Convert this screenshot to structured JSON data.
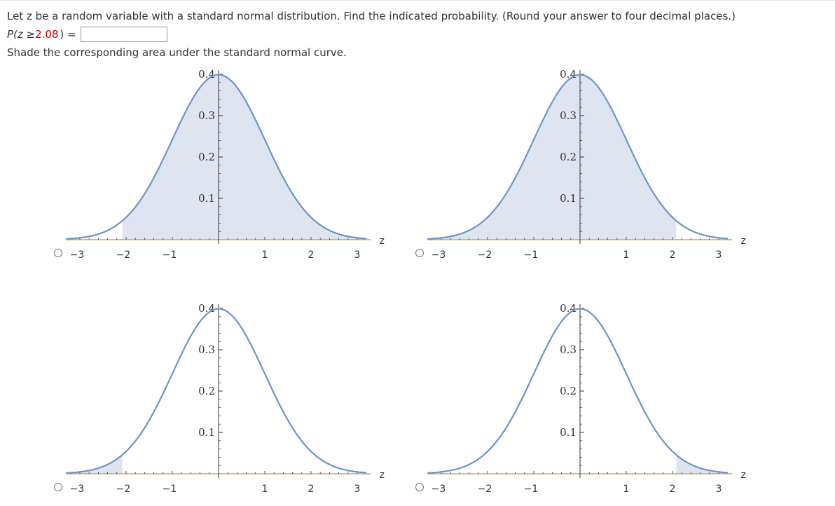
{
  "question": {
    "line1": "Let z be a random variable with a standard normal distribution. Find the indicated probability. (Round your answer to four decimal places.)",
    "prob_prefix": "P(z ≥ ",
    "prob_value": "2.08",
    "prob_suffix": ") =",
    "answer_value": "",
    "instruction": "Shade the corresponding area under the standard normal curve."
  },
  "colors": {
    "curve": "#6f93c6",
    "shade": "#dfe5f0",
    "axis": "#333333",
    "baseline": "#c7a66b",
    "highlight": "#c00000"
  },
  "plots": [
    {
      "name": "option-1",
      "shade_region": "z >= -2.08",
      "shade_from": -2.08,
      "shade_to": 3.3
    },
    {
      "name": "option-2",
      "shade_region": "z <= 2.08",
      "shade_from": -3.3,
      "shade_to": 2.08
    },
    {
      "name": "option-3",
      "shade_region": "z <= -2.08",
      "shade_from": -3.3,
      "shade_to": -2.08
    },
    {
      "name": "option-4",
      "shade_region": "z >= 2.08",
      "shade_from": 2.08,
      "shade_to": 3.3
    }
  ],
  "axis": {
    "y_ticks": [
      "0.1",
      "0.2",
      "0.3",
      "0.4"
    ],
    "x_ticks_left": [
      "−3",
      "−2",
      "−1"
    ],
    "x_ticks_right": [
      "1",
      "2",
      "3"
    ],
    "x_label": "z"
  }
}
